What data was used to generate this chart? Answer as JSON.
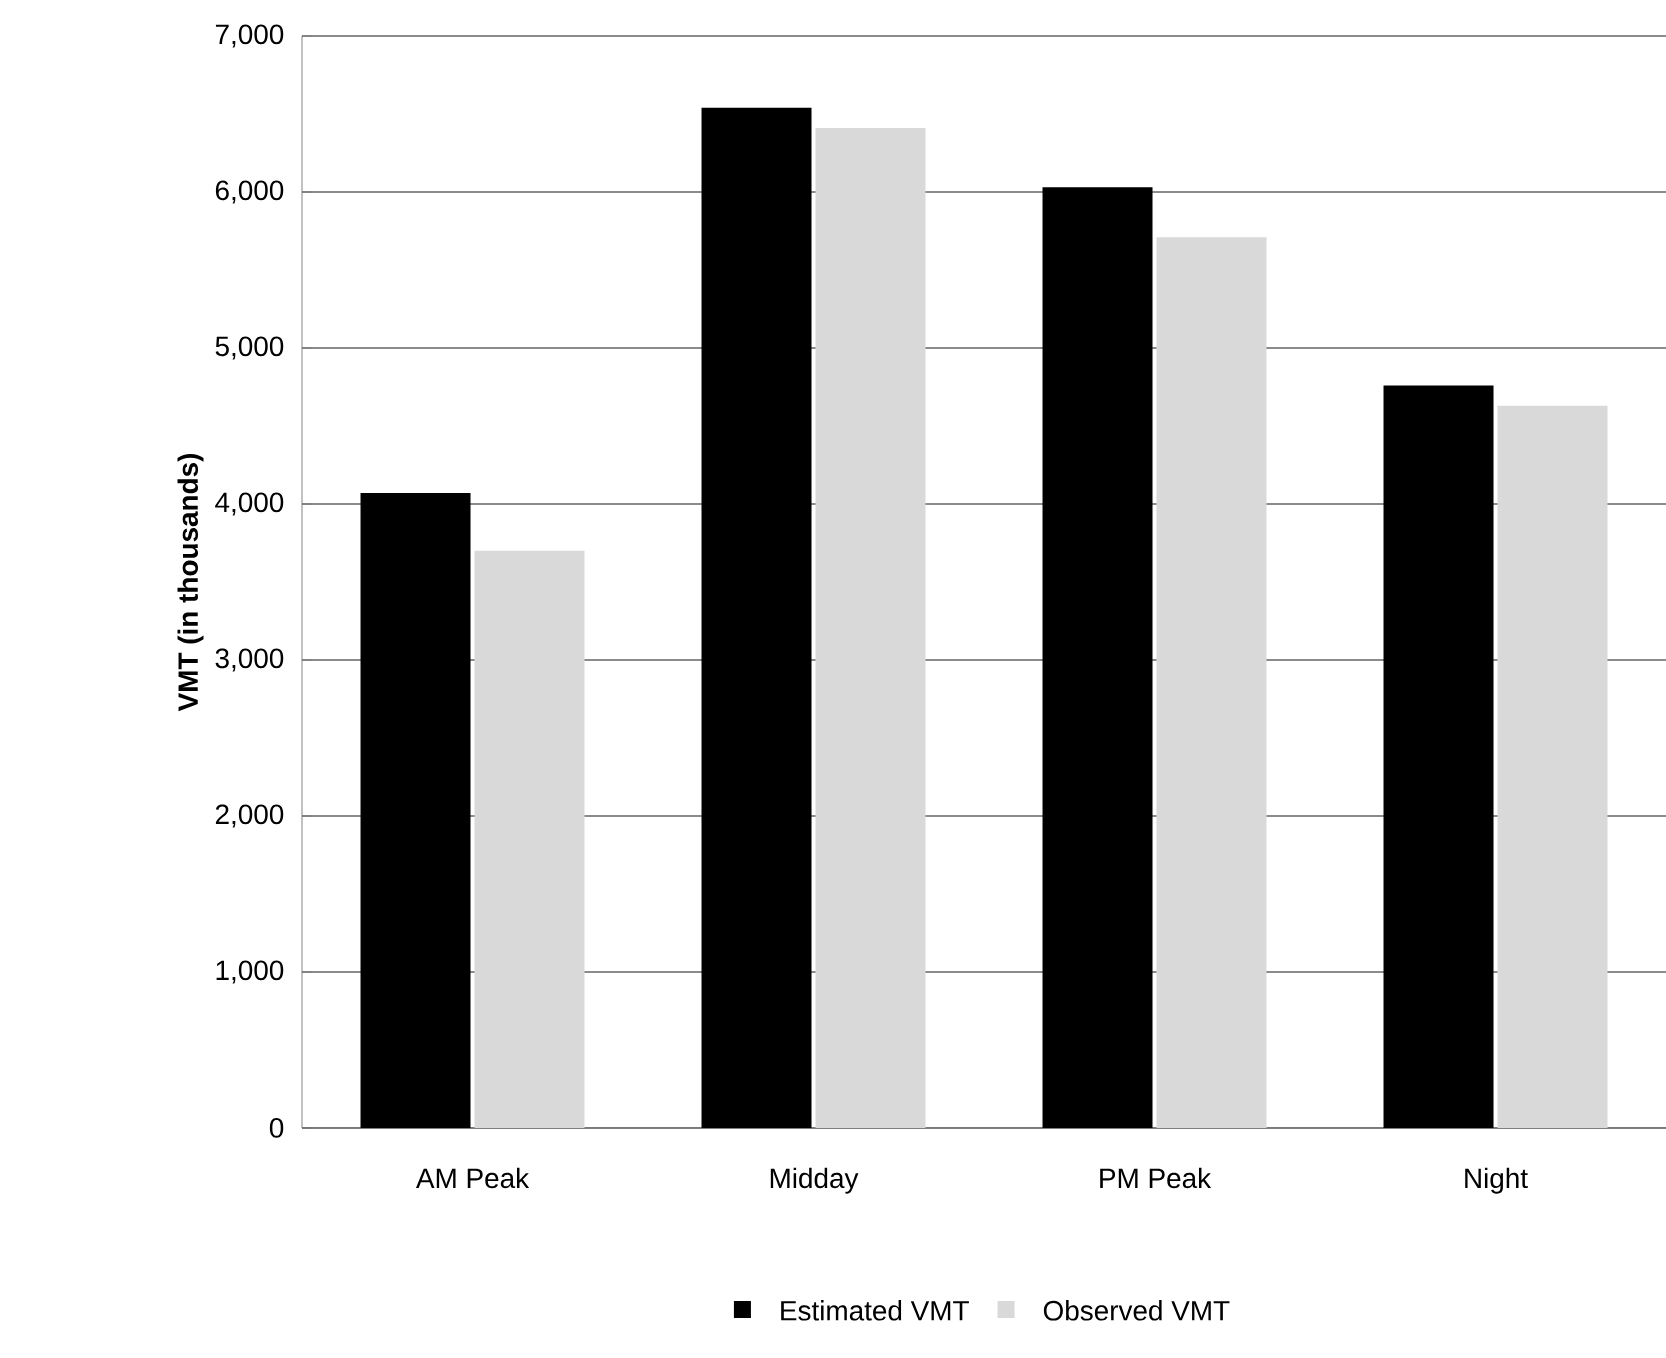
{
  "chart_data": {
    "type": "bar",
    "ylabel": "VMT (in thousands)",
    "categories": [
      "AM Peak",
      "Midday",
      "PM Peak",
      "Night"
    ],
    "series": [
      {
        "name": "Estimated VMT",
        "color": "#000000",
        "values": [
          4070,
          6540,
          6030,
          4760
        ]
      },
      {
        "name": "Observed VMT",
        "color": "#d9d9d9",
        "values": [
          3700,
          6410,
          5710,
          4630
        ]
      }
    ],
    "ylim": [
      0,
      7000
    ],
    "yticks": [
      0,
      {
        "value": 1000,
        "label": "1,000"
      },
      {
        "value": 2000,
        "label": "2,000"
      },
      {
        "value": 3000,
        "label": "3,000"
      },
      {
        "value": 4000,
        "label": "4,000"
      },
      {
        "value": 5000,
        "label": "5,000"
      },
      {
        "value": 6000,
        "label": "6,000"
      },
      {
        "value": 7000,
        "label": "7,000"
      }
    ],
    "grid": "y",
    "legend": "bottom"
  }
}
